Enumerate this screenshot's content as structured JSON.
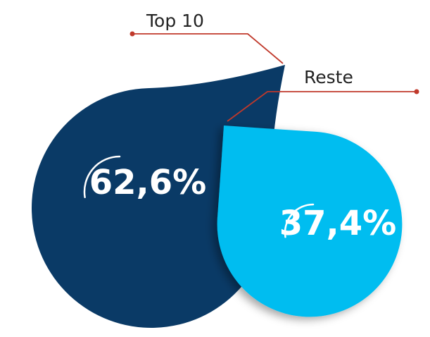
{
  "chart_data": {
    "type": "drop",
    "categories": [
      "Top 10",
      "Reste"
    ],
    "values": [
      62.6,
      37.4
    ],
    "value_labels": [
      "62,6%",
      "37,4%"
    ],
    "colors": [
      "#0a3a66",
      "#00bdf0"
    ]
  }
}
